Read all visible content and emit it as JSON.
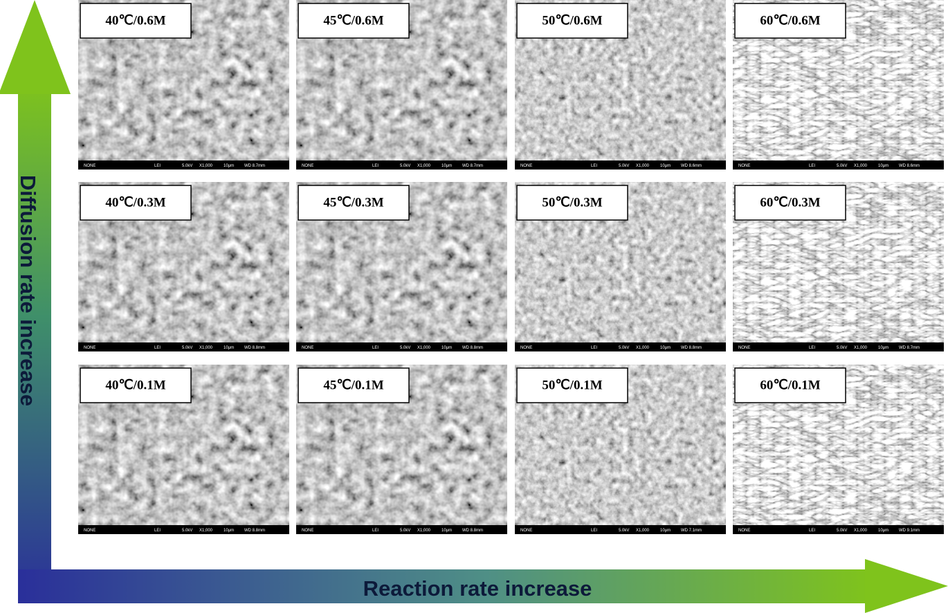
{
  "y_axis_label": "Diffusion rate increase",
  "x_axis_label": "Reaction rate increase",
  "panels": [
    {
      "label": "40℃/0.6M",
      "footer": [
        "NONE",
        "LEI",
        "5.0kV",
        "X1,000",
        "10μm",
        "WD 8.7mm"
      ]
    },
    {
      "label": "45℃/0.6M",
      "footer": [
        "NONE",
        "LEI",
        "5.0kV",
        "X1,000",
        "10μm",
        "WD 8.7mm"
      ]
    },
    {
      "label": "50℃/0.6M",
      "footer": [
        "NONE",
        "LEI",
        "5.0kV",
        "X1,000",
        "10μm",
        "WD 8.6mm"
      ]
    },
    {
      "label": "60℃/0.6M",
      "footer": [
        "NONE",
        "LEI",
        "5.0kV",
        "X1,000",
        "10μm",
        "WD 8.6mm"
      ]
    },
    {
      "label": "40℃/0.3M",
      "footer": [
        "NONE",
        "LEI",
        "5.0kV",
        "X1,000",
        "10μm",
        "WD 8.8mm"
      ]
    },
    {
      "label": "45℃/0.3M",
      "footer": [
        "NONE",
        "LEI",
        "5.0kV",
        "X1,000",
        "10μm",
        "WD 8.8mm"
      ]
    },
    {
      "label": "50℃/0.3M",
      "footer": [
        "NONE",
        "LEI",
        "5.0kV",
        "X1,000",
        "10μm",
        "WD 8.8mm"
      ]
    },
    {
      "label": "60℃/0.3M",
      "footer": [
        "NONE",
        "LEI",
        "5.0kV",
        "X1,000",
        "10μm",
        "WD 8.7mm"
      ]
    },
    {
      "label": "40℃/0.1M",
      "footer": [
        "NONE",
        "LEI",
        "5.0kV",
        "X1,000",
        "10μm",
        "WD 8.8mm"
      ]
    },
    {
      "label": "45℃/0.1M",
      "footer": [
        "NONE",
        "LEI",
        "5.0kV",
        "X1,000",
        "10μm",
        "WD 8.8mm"
      ]
    },
    {
      "label": "50℃/0.1M",
      "footer": [
        "NONE",
        "LEI",
        "5.0kV",
        "X1,000",
        "10μm",
        "WD 7.1mm"
      ]
    },
    {
      "label": "60℃/0.1M",
      "footer": [
        "NONE",
        "LEI",
        "5.0kV",
        "X1,000",
        "10μm",
        "WD 9.1mm"
      ]
    }
  ]
}
